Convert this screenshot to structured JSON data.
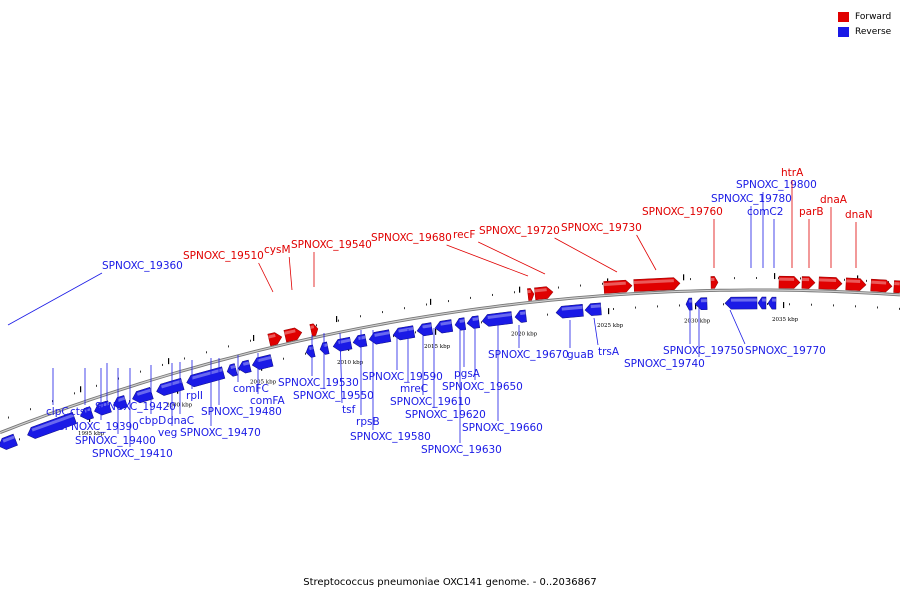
{
  "caption": "Streptococcus pneumoniae OXC141 genome. - 0..2036867",
  "legend": {
    "forward_label": "Forward",
    "reverse_label": "Reverse",
    "forward_color": "#e00000",
    "reverse_color": "#1a1ae6"
  },
  "kbp_ticks": [
    {
      "label": "1995 kbp"
    },
    {
      "label": "2000 kbp"
    },
    {
      "label": "2005 kbp"
    },
    {
      "label": "2010 kbp"
    },
    {
      "label": "2015 kbp"
    },
    {
      "label": "2020 kbp"
    },
    {
      "label": "2025 kbp"
    },
    {
      "label": "2030 kbp"
    },
    {
      "label": "2035 kbp"
    }
  ],
  "genes": [
    {
      "name": "SPNOXC_19360",
      "strand": "reverse"
    },
    {
      "name": "clpC",
      "strand": "reverse"
    },
    {
      "name": "ctsR",
      "strand": "reverse"
    },
    {
      "name": "SPNOXC_19390",
      "strand": "reverse"
    },
    {
      "name": "SPNOXC_19400",
      "strand": "reverse"
    },
    {
      "name": "SPNOXC_19410",
      "strand": "reverse"
    },
    {
      "name": "SPNOXC_19420",
      "strand": "reverse"
    },
    {
      "name": "cbpD",
      "strand": "reverse"
    },
    {
      "name": "veg",
      "strand": "reverse"
    },
    {
      "name": "dnaC",
      "strand": "reverse"
    },
    {
      "name": "rplI",
      "strand": "reverse"
    },
    {
      "name": "SPNOXC_19470",
      "strand": "reverse"
    },
    {
      "name": "SPNOXC_19480",
      "strand": "reverse"
    },
    {
      "name": "comFC",
      "strand": "reverse"
    },
    {
      "name": "comFA",
      "strand": "reverse"
    },
    {
      "name": "SPNOXC_19510",
      "strand": "forward"
    },
    {
      "name": "cysM",
      "strand": "forward"
    },
    {
      "name": "SPNOXC_19530",
      "strand": "reverse"
    },
    {
      "name": "SPNOXC_19540",
      "strand": "forward"
    },
    {
      "name": "SPNOXC_19550",
      "strand": "reverse"
    },
    {
      "name": "tsf",
      "strand": "reverse"
    },
    {
      "name": "rpsB",
      "strand": "reverse"
    },
    {
      "name": "SPNOXC_19580",
      "strand": "reverse"
    },
    {
      "name": "SPNOXC_19590",
      "strand": "reverse"
    },
    {
      "name": "mreC",
      "strand": "reverse"
    },
    {
      "name": "SPNOXC_19610",
      "strand": "reverse"
    },
    {
      "name": "SPNOXC_19620",
      "strand": "reverse"
    },
    {
      "name": "SPNOXC_19630",
      "strand": "reverse"
    },
    {
      "name": "pgsA",
      "strand": "reverse"
    },
    {
      "name": "SPNOXC_19650",
      "strand": "reverse"
    },
    {
      "name": "SPNOXC_19660",
      "strand": "reverse"
    },
    {
      "name": "SPNOXC_19670",
      "strand": "reverse"
    },
    {
      "name": "SPNOXC_19680",
      "strand": "forward"
    },
    {
      "name": "recF",
      "strand": "forward"
    },
    {
      "name": "SPNOXC_19720",
      "strand": "forward"
    },
    {
      "name": "guaB",
      "strand": "reverse"
    },
    {
      "name": "SPNOXC_19730",
      "strand": "forward"
    },
    {
      "name": "trsA",
      "strand": "reverse"
    },
    {
      "name": "SPNOXC_19740",
      "strand": "reverse"
    },
    {
      "name": "SPNOXC_19750",
      "strand": "reverse"
    },
    {
      "name": "SPNOXC_19760",
      "strand": "forward"
    },
    {
      "name": "SPNOXC_19770",
      "strand": "reverse"
    },
    {
      "name": "SPNOXC_19780",
      "strand": "reverse"
    },
    {
      "name": "comC2",
      "strand": "reverse"
    },
    {
      "name": "SPNOXC_19800",
      "strand": "reverse"
    },
    {
      "name": "htrA",
      "strand": "forward"
    },
    {
      "name": "parB",
      "strand": "forward"
    },
    {
      "name": "dnaA",
      "strand": "forward"
    },
    {
      "name": "dnaN",
      "strand": "forward"
    }
  ]
}
